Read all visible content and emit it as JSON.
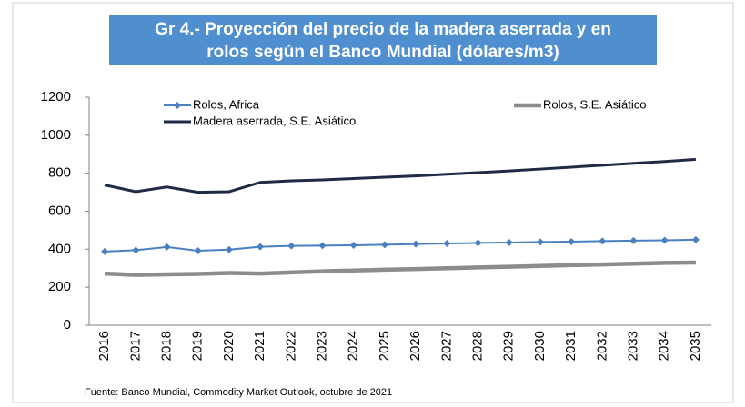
{
  "chart_data": {
    "type": "line",
    "title": [
      "Gr 4.- Proyección del precio de la madera aserrada y en",
      "rolos según el Banco Mundial (dólares/m3)"
    ],
    "source": "Fuente: Banco Mundial, Commodity Market Outlook, octubre de 2021",
    "categories": [
      "2016",
      "2017",
      "2018",
      "2019",
      "2020",
      "2021",
      "2022",
      "2023",
      "2024",
      "2025",
      "2026",
      "2027",
      "2028",
      "2029",
      "2030",
      "2031",
      "2032",
      "2033",
      "2034",
      "2035"
    ],
    "series": [
      {
        "name": "Rolos, Africa",
        "color": "#4a7fc1",
        "marker": "diamond",
        "values": [
          388,
          395,
          412,
          392,
          398,
          413,
          418,
          419,
          421,
          424,
          427,
          430,
          433,
          435,
          438,
          440,
          443,
          445,
          447,
          450
        ]
      },
      {
        "name": "Rolos, S.E. Asiático",
        "color": "#8c8c8c",
        "values": [
          272,
          265,
          268,
          270,
          275,
          272,
          278,
          284,
          288,
          292,
          296,
          300,
          304,
          308,
          312,
          316,
          320,
          324,
          328,
          330
        ]
      },
      {
        "name": "Madera aserrada, S.E. Asiático",
        "color": "#1f2a44",
        "values": [
          738,
          703,
          728,
          700,
          703,
          752,
          760,
          765,
          772,
          779,
          786,
          795,
          803,
          812,
          822,
          832,
          842,
          852,
          862,
          873
        ]
      }
    ],
    "ylim": [
      0,
      1200
    ],
    "yticks": [
      0,
      200,
      400,
      600,
      800,
      1000,
      1200
    ],
    "grid": false,
    "legend": "top"
  }
}
